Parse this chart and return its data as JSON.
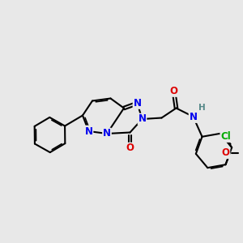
{
  "bg": "#e8e8e8",
  "bond_color": "#000000",
  "bw": 1.5,
  "fs": 8.5,
  "colors": {
    "N": "#0000ee",
    "O": "#dd0000",
    "Cl": "#00aa00",
    "H": "#558888",
    "C": "#000000"
  },
  "xlim": [
    0,
    10
  ],
  "ylim": [
    0,
    10
  ]
}
